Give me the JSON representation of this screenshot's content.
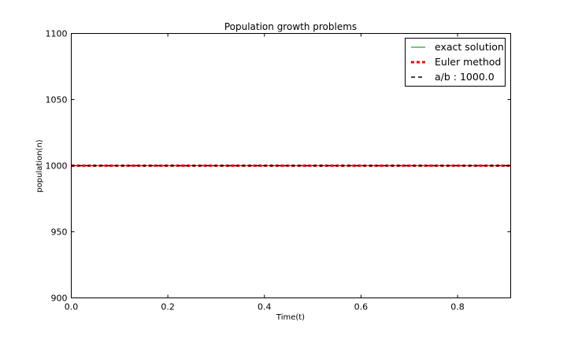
{
  "chart_data": {
    "type": "line",
    "title": "Population growth problems",
    "xlabel": "Time(t)",
    "ylabel": "population(n)",
    "xlim": [
      0.0,
      0.91
    ],
    "ylim": [
      900,
      1100
    ],
    "xticks": [
      0.0,
      0.2,
      0.4,
      0.6,
      0.8
    ],
    "xtick_labels": [
      "0.0",
      "0.2",
      "0.4",
      "0.6",
      "0.8"
    ],
    "yticks": [
      900,
      950,
      1000,
      1050,
      1100
    ],
    "ytick_labels": [
      "900",
      "950",
      "1000",
      "1050",
      "1100"
    ],
    "grid": false,
    "legend_position": "top-right",
    "series": [
      {
        "name": "exact solution",
        "style": "solid",
        "color": "#008000",
        "x": [
          0.0,
          0.91
        ],
        "y": [
          1000,
          1000
        ]
      },
      {
        "name": "Euler method",
        "style": "dashed-thick",
        "color": "#ff0000",
        "x": [
          0.0,
          0.91
        ],
        "y": [
          1000,
          1000
        ]
      },
      {
        "name": "a/b : 1000.0",
        "style": "dashed",
        "color": "#000000",
        "x": [
          0.0,
          0.91
        ],
        "y": [
          1000,
          1000
        ]
      }
    ]
  }
}
